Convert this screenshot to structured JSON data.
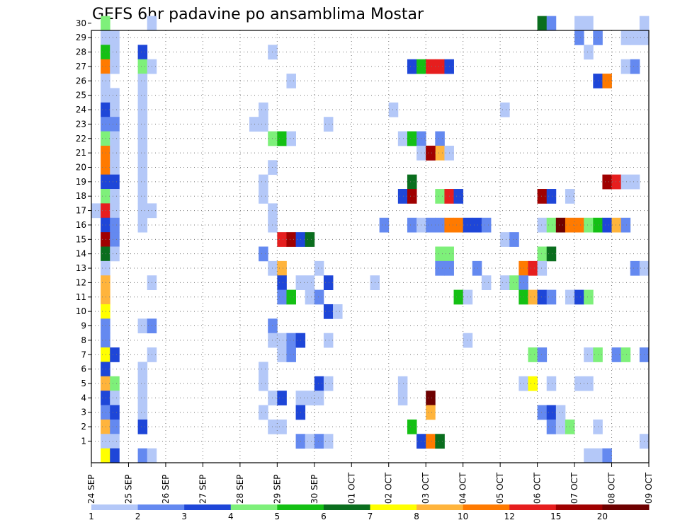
{
  "chart_data": {
    "type": "heatmap",
    "title": "GEFS 6hr padavine po ansamblima Mostar",
    "xlabel": "",
    "ylabel": "",
    "x_tick_labels": [
      "24 SEP",
      "25 SEP",
      "26 SEP",
      "27 SEP",
      "28 SEP",
      "29 SEP",
      "30 SEP",
      "01 OCT",
      "02 OCT",
      "03 OCT",
      "04 OCT",
      "05 OCT",
      "06 OCT",
      "07 OCT",
      "08 OCT",
      "09 OCT"
    ],
    "y_tick_labels": [
      "1",
      "2",
      "3",
      "4",
      "5",
      "6",
      "7",
      "8",
      "9",
      "10",
      "11",
      "12",
      "13",
      "14",
      "15",
      "16",
      "17",
      "18",
      "19",
      "20",
      "21",
      "22",
      "23",
      "24",
      "25",
      "26",
      "27",
      "28",
      "29",
      "30"
    ],
    "x_range": [
      0,
      60
    ],
    "y_range": [
      0,
      30
    ],
    "grid": "dotted",
    "colorbar": {
      "labels": [
        "1",
        "2",
        "3",
        "4",
        "5",
        "6",
        "7",
        "8",
        "10",
        "12",
        "15",
        "20"
      ],
      "colors": [
        "#b4c8f8",
        "#6489f0",
        "#1e46d8",
        "#7ef07a",
        "#14c014",
        "#0a6e1e",
        "#ffff00",
        "#ffb43c",
        "#ff7a00",
        "#e61e1e",
        "#a00000",
        "#6e0000"
      ]
    },
    "cells": [
      [
        1,
        30,
        4
      ],
      [
        1,
        29,
        1
      ],
      [
        2,
        29,
        1
      ],
      [
        1,
        28,
        5
      ],
      [
        2,
        28,
        1
      ],
      [
        1,
        27,
        9
      ],
      [
        2,
        27,
        1
      ],
      [
        1,
        26,
        1
      ],
      [
        1,
        25,
        1
      ],
      [
        2,
        25,
        1
      ],
      [
        1,
        24,
        3
      ],
      [
        2,
        24,
        1
      ],
      [
        1,
        23,
        2
      ],
      [
        2,
        23,
        2
      ],
      [
        1,
        22,
        4
      ],
      [
        2,
        22,
        1
      ],
      [
        1,
        21,
        9
      ],
      [
        2,
        21,
        1
      ],
      [
        1,
        20,
        9
      ],
      [
        2,
        20,
        1
      ],
      [
        1,
        19,
        3
      ],
      [
        2,
        19,
        3
      ],
      [
        1,
        18,
        4
      ],
      [
        2,
        18,
        1
      ],
      [
        0,
        17,
        1
      ],
      [
        1,
        17,
        10
      ],
      [
        2,
        17,
        1
      ],
      [
        1,
        16,
        3
      ],
      [
        2,
        16,
        2
      ],
      [
        1,
        15,
        11
      ],
      [
        2,
        15,
        2
      ],
      [
        1,
        14,
        6
      ],
      [
        2,
        14,
        1
      ],
      [
        1,
        13,
        1
      ],
      [
        1,
        12,
        8
      ],
      [
        1,
        11,
        8
      ],
      [
        1,
        10,
        7
      ],
      [
        1,
        9,
        2
      ],
      [
        1,
        8,
        2
      ],
      [
        1,
        7,
        7
      ],
      [
        2,
        7,
        3
      ],
      [
        1,
        6,
        3
      ],
      [
        1,
        5,
        8
      ],
      [
        2,
        5,
        4
      ],
      [
        1,
        4,
        3
      ],
      [
        2,
        4,
        1
      ],
      [
        1,
        3,
        2
      ],
      [
        2,
        3,
        3
      ],
      [
        1,
        2,
        8
      ],
      [
        2,
        2,
        2
      ],
      [
        1,
        1,
        1
      ],
      [
        2,
        1,
        1
      ],
      [
        1,
        0,
        7
      ],
      [
        2,
        0,
        3
      ],
      [
        6,
        30,
        1
      ],
      [
        5,
        28,
        3
      ],
      [
        5,
        27,
        4
      ],
      [
        6,
        27,
        1
      ],
      [
        5,
        26,
        1
      ],
      [
        5,
        25,
        1
      ],
      [
        5,
        24,
        1
      ],
      [
        5,
        23,
        1
      ],
      [
        5,
        22,
        1
      ],
      [
        5,
        21,
        1
      ],
      [
        5,
        20,
        1
      ],
      [
        5,
        19,
        1
      ],
      [
        5,
        18,
        1
      ],
      [
        5,
        17,
        1
      ],
      [
        6,
        17,
        1
      ],
      [
        5,
        16,
        1
      ],
      [
        6,
        12,
        1
      ],
      [
        5,
        9,
        1
      ],
      [
        6,
        9,
        2
      ],
      [
        6,
        7,
        1
      ],
      [
        5,
        6,
        1
      ],
      [
        5,
        5,
        1
      ],
      [
        5,
        4,
        1
      ],
      [
        5,
        3,
        1
      ],
      [
        5,
        2,
        3
      ],
      [
        5,
        0,
        2
      ],
      [
        6,
        0,
        1
      ],
      [
        19,
        28,
        1
      ],
      [
        21,
        26,
        1
      ],
      [
        18,
        24,
        1
      ],
      [
        17,
        23,
        1
      ],
      [
        18,
        23,
        1
      ],
      [
        25,
        23,
        1
      ],
      [
        19,
        22,
        4
      ],
      [
        20,
        22,
        5
      ],
      [
        21,
        22,
        1
      ],
      [
        19,
        20,
        1
      ],
      [
        18,
        19,
        1
      ],
      [
        18,
        18,
        1
      ],
      [
        19,
        17,
        1
      ],
      [
        19,
        16,
        1
      ],
      [
        20,
        15,
        10
      ],
      [
        21,
        15,
        11
      ],
      [
        22,
        15,
        3
      ],
      [
        23,
        15,
        6
      ],
      [
        18,
        14,
        2
      ],
      [
        19,
        13,
        1
      ],
      [
        20,
        13,
        8
      ],
      [
        24,
        13,
        1
      ],
      [
        20,
        12,
        3
      ],
      [
        22,
        12,
        1
      ],
      [
        23,
        12,
        1
      ],
      [
        25,
        12,
        3
      ],
      [
        20,
        11,
        2
      ],
      [
        21,
        11,
        5
      ],
      [
        23,
        11,
        1
      ],
      [
        24,
        11,
        2
      ],
      [
        25,
        10,
        3
      ],
      [
        26,
        10,
        1
      ],
      [
        19,
        9,
        2
      ],
      [
        19,
        8,
        1
      ],
      [
        20,
        8,
        1
      ],
      [
        21,
        8,
        2
      ],
      [
        22,
        8,
        3
      ],
      [
        25,
        8,
        1
      ],
      [
        20,
        7,
        1
      ],
      [
        21,
        7,
        2
      ],
      [
        18,
        6,
        1
      ],
      [
        18,
        5,
        1
      ],
      [
        24,
        5,
        3
      ],
      [
        25,
        5,
        1
      ],
      [
        19,
        4,
        1
      ],
      [
        20,
        4,
        3
      ],
      [
        22,
        4,
        1
      ],
      [
        23,
        4,
        1
      ],
      [
        24,
        4,
        1
      ],
      [
        18,
        3,
        1
      ],
      [
        22,
        3,
        3
      ],
      [
        19,
        2,
        1
      ],
      [
        20,
        2,
        1
      ],
      [
        22,
        1,
        2
      ],
      [
        23,
        1,
        1
      ],
      [
        24,
        1,
        2
      ],
      [
        25,
        1,
        1
      ],
      [
        34,
        27,
        3
      ],
      [
        35,
        27,
        5
      ],
      [
        36,
        27,
        10
      ],
      [
        37,
        27,
        10
      ],
      [
        38,
        27,
        3
      ],
      [
        33,
        22,
        1
      ],
      [
        34,
        22,
        5
      ],
      [
        35,
        22,
        2
      ],
      [
        37,
        22,
        2
      ],
      [
        35,
        21,
        1
      ],
      [
        36,
        21,
        11
      ],
      [
        37,
        21,
        8
      ],
      [
        38,
        21,
        1
      ],
      [
        32,
        24,
        1
      ],
      [
        34,
        19,
        6
      ],
      [
        33,
        18,
        3
      ],
      [
        34,
        18,
        11
      ],
      [
        37,
        18,
        4
      ],
      [
        38,
        18,
        10
      ],
      [
        39,
        18,
        3
      ],
      [
        31,
        16,
        2
      ],
      [
        34,
        16,
        2
      ],
      [
        35,
        16,
        1
      ],
      [
        36,
        16,
        2
      ],
      [
        37,
        16,
        2
      ],
      [
        38,
        16,
        9
      ],
      [
        39,
        16,
        9
      ],
      [
        40,
        16,
        3
      ],
      [
        41,
        16,
        3
      ],
      [
        42,
        16,
        2
      ],
      [
        37,
        14,
        4
      ],
      [
        38,
        14,
        4
      ],
      [
        37,
        13,
        2
      ],
      [
        38,
        13,
        2
      ],
      [
        41,
        13,
        2
      ],
      [
        30,
        12,
        1
      ],
      [
        39,
        11,
        5
      ],
      [
        40,
        11,
        1
      ],
      [
        33,
        5,
        1
      ],
      [
        33,
        4,
        1
      ],
      [
        36,
        4,
        12
      ],
      [
        36,
        3,
        8
      ],
      [
        34,
        2,
        5
      ],
      [
        35,
        1,
        3
      ],
      [
        36,
        1,
        9
      ],
      [
        37,
        1,
        6
      ],
      [
        40,
        8,
        1
      ],
      [
        42,
        12,
        1
      ],
      [
        36,
        21,
        11
      ],
      [
        44,
        24,
        1
      ],
      [
        48,
        30,
        6
      ],
      [
        49,
        30,
        2
      ],
      [
        52,
        30,
        1
      ],
      [
        53,
        30,
        1
      ],
      [
        59,
        30,
        1
      ],
      [
        52,
        29,
        2
      ],
      [
        54,
        29,
        2
      ],
      [
        57,
        29,
        1
      ],
      [
        58,
        29,
        1
      ],
      [
        59,
        29,
        1
      ],
      [
        53,
        28,
        1
      ],
      [
        57,
        27,
        1
      ],
      [
        58,
        27,
        2
      ],
      [
        54,
        26,
        3
      ],
      [
        55,
        26,
        9
      ],
      [
        55,
        19,
        11
      ],
      [
        56,
        19,
        10
      ],
      [
        57,
        19,
        1
      ],
      [
        58,
        19,
        1
      ],
      [
        48,
        18,
        11
      ],
      [
        49,
        18,
        3
      ],
      [
        51,
        18,
        1
      ],
      [
        48,
        16,
        1
      ],
      [
        49,
        16,
        4
      ],
      [
        50,
        16,
        12
      ],
      [
        51,
        16,
        9
      ],
      [
        52,
        16,
        9
      ],
      [
        53,
        16,
        4
      ],
      [
        54,
        16,
        5
      ],
      [
        55,
        16,
        3
      ],
      [
        56,
        16,
        8
      ],
      [
        57,
        16,
        2
      ],
      [
        44,
        15,
        1
      ],
      [
        45,
        15,
        2
      ],
      [
        48,
        14,
        4
      ],
      [
        49,
        14,
        6
      ],
      [
        46,
        13,
        9
      ],
      [
        47,
        13,
        10
      ],
      [
        48,
        13,
        1
      ],
      [
        58,
        13,
        2
      ],
      [
        59,
        13,
        1
      ],
      [
        44,
        12,
        1
      ],
      [
        45,
        12,
        4
      ],
      [
        46,
        12,
        2
      ],
      [
        46,
        11,
        5
      ],
      [
        47,
        11,
        8
      ],
      [
        48,
        11,
        3
      ],
      [
        49,
        11,
        2
      ],
      [
        51,
        11,
        1
      ],
      [
        52,
        11,
        3
      ],
      [
        53,
        11,
        4
      ],
      [
        47,
        7,
        4
      ],
      [
        48,
        7,
        2
      ],
      [
        53,
        7,
        1
      ],
      [
        54,
        7,
        4
      ],
      [
        56,
        7,
        2
      ],
      [
        57,
        7,
        4
      ],
      [
        59,
        7,
        2
      ],
      [
        46,
        5,
        1
      ],
      [
        47,
        5,
        7
      ],
      [
        49,
        5,
        1
      ],
      [
        52,
        5,
        1
      ],
      [
        53,
        5,
        1
      ],
      [
        48,
        3,
        2
      ],
      [
        49,
        3,
        3
      ],
      [
        50,
        3,
        1
      ],
      [
        49,
        2,
        2
      ],
      [
        50,
        2,
        1
      ],
      [
        51,
        2,
        4
      ],
      [
        54,
        2,
        1
      ],
      [
        53,
        0,
        1
      ],
      [
        54,
        0,
        1
      ],
      [
        55,
        0,
        2
      ],
      [
        59,
        1,
        1
      ]
    ]
  }
}
